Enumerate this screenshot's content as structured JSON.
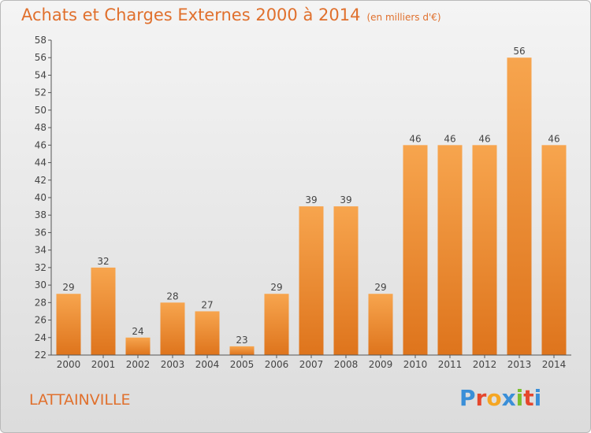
{
  "chart_data": {
    "type": "bar",
    "title": "Achats et Charges Externes 2000 à 2014",
    "subtitle": "(en milliers d'€)",
    "categories": [
      "2000",
      "2001",
      "2002",
      "2003",
      "2004",
      "2005",
      "2006",
      "2007",
      "2008",
      "2009",
      "2010",
      "2011",
      "2012",
      "2013",
      "2014"
    ],
    "values": [
      29,
      32,
      24,
      28,
      27,
      23,
      29,
      39,
      39,
      29,
      46,
      46,
      46,
      56,
      46
    ],
    "ylim": [
      22,
      58
    ],
    "ytick_step": 2,
    "grid": false,
    "bar_color": "#f08c2c"
  },
  "commune": "LATTAINVILLE",
  "logo": {
    "text": "Proxiti",
    "letters": [
      "P",
      "r",
      "o",
      "x",
      "i",
      "t",
      "i"
    ],
    "colors": [
      "#3a8fd8",
      "#e5472d",
      "#f5a623",
      "#3a8fd8",
      "#7bbf2e",
      "#e5472d",
      "#3a8fd8"
    ]
  }
}
